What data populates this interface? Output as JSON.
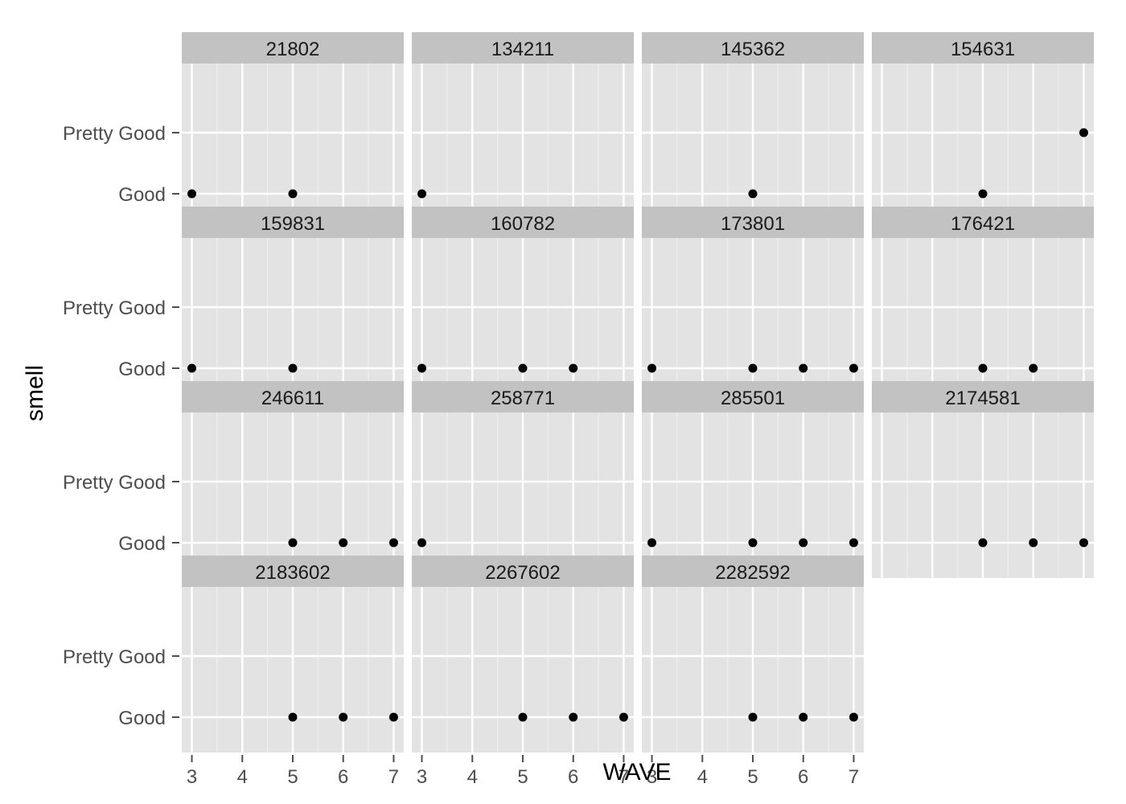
{
  "chart_data": {
    "type": "scatter",
    "layout": "facet-wrap",
    "xlabel": "WAVE",
    "ylabel": "smell",
    "x_ticks": [
      3,
      4,
      5,
      6,
      7
    ],
    "xlim": [
      2.8,
      7.2
    ],
    "y_categories": [
      "Good",
      "Pretty Good"
    ],
    "colors": {
      "panel": "#e3e3e3",
      "strip": "#c2c2c2",
      "point": "#000000",
      "grid": "#ffffff"
    },
    "facets": [
      {
        "id": "21802",
        "points": [
          {
            "x": 3,
            "y": "Good"
          },
          {
            "x": 5,
            "y": "Good"
          }
        ]
      },
      {
        "id": "134211",
        "points": [
          {
            "x": 3,
            "y": "Good"
          }
        ]
      },
      {
        "id": "145362",
        "points": [
          {
            "x": 5,
            "y": "Good"
          }
        ]
      },
      {
        "id": "154631",
        "points": [
          {
            "x": 5,
            "y": "Good"
          },
          {
            "x": 7,
            "y": "Pretty Good"
          }
        ]
      },
      {
        "id": "159831",
        "points": [
          {
            "x": 3,
            "y": "Good"
          },
          {
            "x": 5,
            "y": "Good"
          }
        ]
      },
      {
        "id": "160782",
        "points": [
          {
            "x": 3,
            "y": "Good"
          },
          {
            "x": 5,
            "y": "Good"
          },
          {
            "x": 6,
            "y": "Good"
          }
        ]
      },
      {
        "id": "173801",
        "points": [
          {
            "x": 3,
            "y": "Good"
          },
          {
            "x": 5,
            "y": "Good"
          },
          {
            "x": 6,
            "y": "Good"
          },
          {
            "x": 7,
            "y": "Good"
          }
        ]
      },
      {
        "id": "176421",
        "points": [
          {
            "x": 5,
            "y": "Good"
          },
          {
            "x": 6,
            "y": "Good"
          }
        ]
      },
      {
        "id": "246611",
        "points": [
          {
            "x": 5,
            "y": "Good"
          },
          {
            "x": 6,
            "y": "Good"
          },
          {
            "x": 7,
            "y": "Good"
          }
        ]
      },
      {
        "id": "258771",
        "points": [
          {
            "x": 3,
            "y": "Good"
          }
        ]
      },
      {
        "id": "285501",
        "points": [
          {
            "x": 3,
            "y": "Good"
          },
          {
            "x": 5,
            "y": "Good"
          },
          {
            "x": 6,
            "y": "Good"
          },
          {
            "x": 7,
            "y": "Good"
          }
        ]
      },
      {
        "id": "2174581",
        "points": [
          {
            "x": 5,
            "y": "Good"
          },
          {
            "x": 6,
            "y": "Good"
          },
          {
            "x": 7,
            "y": "Good"
          }
        ]
      },
      {
        "id": "2183602",
        "points": [
          {
            "x": 5,
            "y": "Good"
          },
          {
            "x": 6,
            "y": "Good"
          },
          {
            "x": 7,
            "y": "Good"
          }
        ]
      },
      {
        "id": "2267602",
        "points": [
          {
            "x": 5,
            "y": "Good"
          },
          {
            "x": 6,
            "y": "Good"
          },
          {
            "x": 7,
            "y": "Good"
          }
        ]
      },
      {
        "id": "2282592",
        "points": [
          {
            "x": 5,
            "y": "Good"
          },
          {
            "x": 6,
            "y": "Good"
          },
          {
            "x": 7,
            "y": "Good"
          }
        ]
      }
    ]
  }
}
